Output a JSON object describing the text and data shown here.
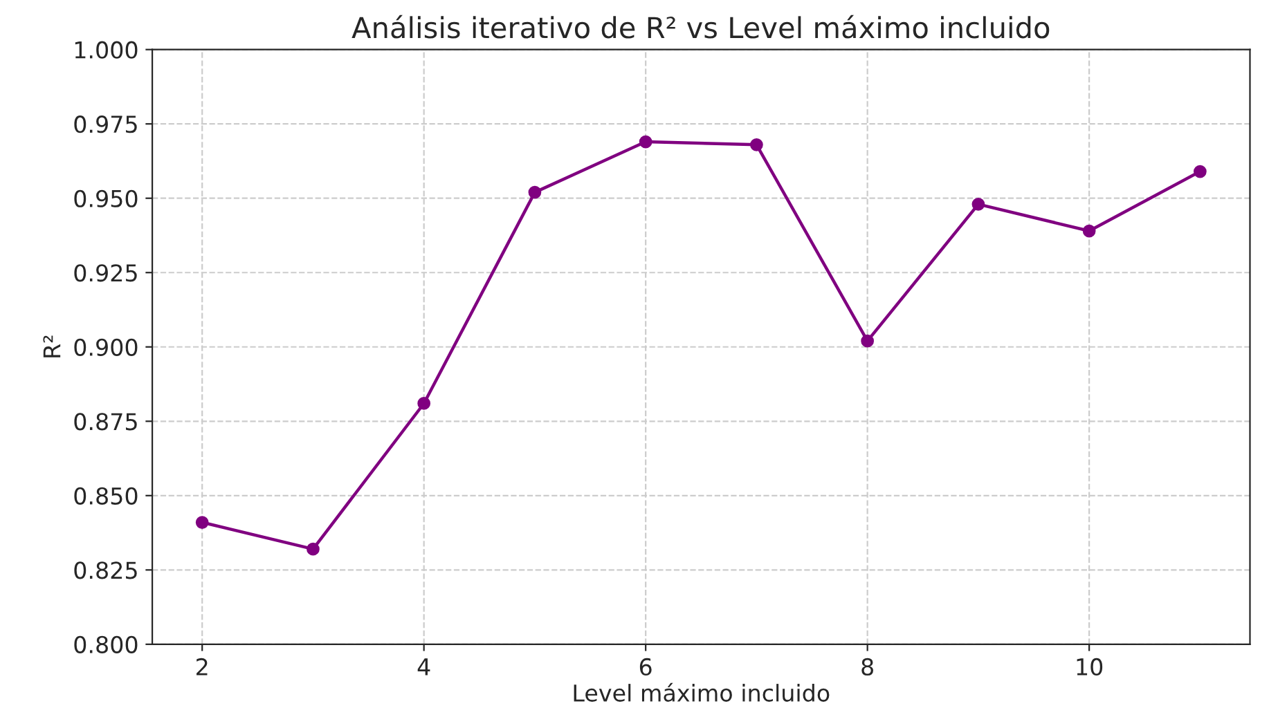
{
  "chart_data": {
    "type": "line",
    "title": "Análisis iterativo de R² vs Level máximo incluido",
    "xlabel": "Level máximo incluido",
    "ylabel": "R²",
    "x": [
      2,
      3,
      4,
      5,
      6,
      7,
      8,
      9,
      10,
      11
    ],
    "series": [
      {
        "color": "#800080",
        "values": [
          0.841,
          0.832,
          0.881,
          0.952,
          0.969,
          0.968,
          0.902,
          0.948,
          0.939,
          0.959
        ]
      }
    ],
    "xlim": [
      1.55,
      11.45
    ],
    "xticks": [
      2,
      4,
      6,
      8,
      10
    ],
    "ylim": [
      0.8,
      1.0
    ],
    "yticks": [
      {
        "value": 0.8,
        "label": "0.800"
      },
      {
        "value": 0.825,
        "label": "0.825"
      },
      {
        "value": 0.85,
        "label": "0.850"
      },
      {
        "value": 0.875,
        "label": "0.875"
      },
      {
        "value": 0.9,
        "label": "0.900"
      },
      {
        "value": 0.925,
        "label": "0.925"
      },
      {
        "value": 0.95,
        "label": "0.950"
      },
      {
        "value": 0.975,
        "label": "0.975"
      },
      {
        "value": 1.0,
        "label": "1.000"
      }
    ],
    "grid": true,
    "marker": "circle",
    "line_style": "solid"
  }
}
